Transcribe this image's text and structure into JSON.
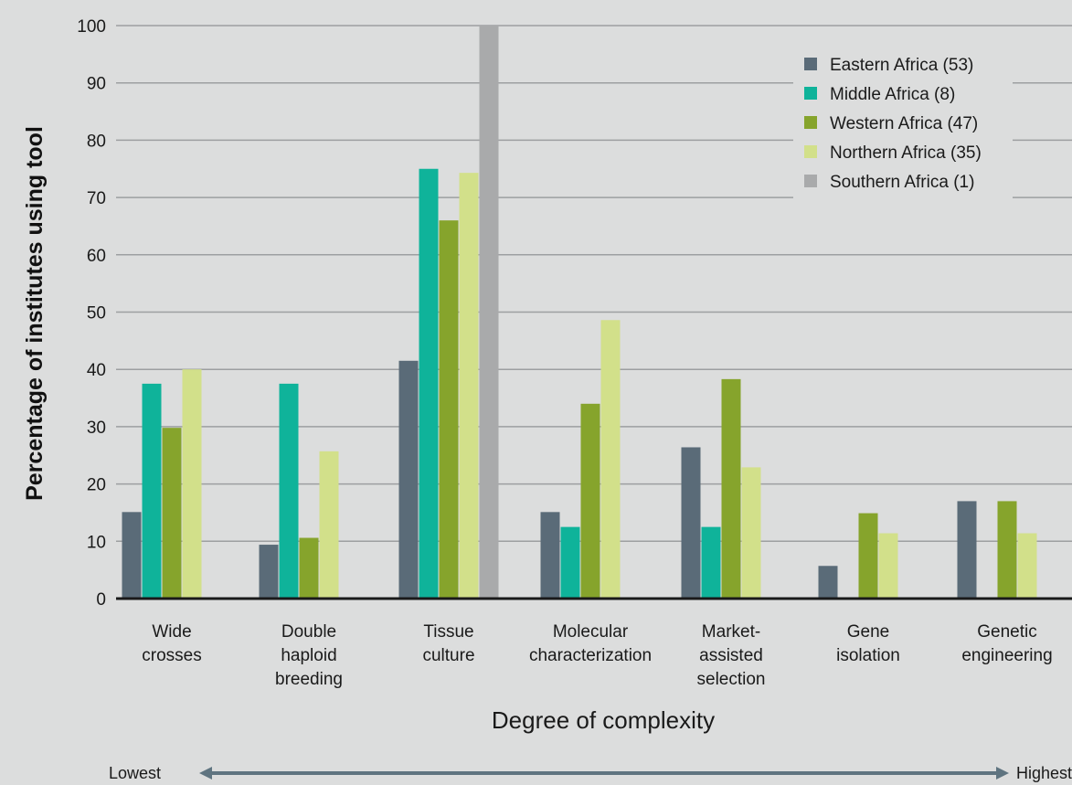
{
  "chart_data": {
    "type": "bar",
    "ylabel": "Percentage of institutes using tool",
    "xlabel": "Degree of complexity",
    "ylim": [
      0,
      100
    ],
    "yticks": [
      0,
      10,
      20,
      30,
      40,
      50,
      60,
      70,
      80,
      90,
      100
    ],
    "grid": true,
    "legend_position": "top-right",
    "complexity_axis": {
      "low_label": "Lowest",
      "high_label": "Highest"
    },
    "categories": [
      [
        "Wide",
        "crosses"
      ],
      [
        "Double",
        "haploid",
        "breeding"
      ],
      [
        "Tissue",
        "culture"
      ],
      [
        "Molecular",
        "characterization"
      ],
      [
        "Market-",
        "assisted",
        "selection"
      ],
      [
        "Gene",
        "isolation"
      ],
      [
        "Genetic",
        "engineering"
      ]
    ],
    "series": [
      {
        "name": "Eastern Africa (53)",
        "color": "#5a6b78",
        "values": [
          15.1,
          9.4,
          41.5,
          15.1,
          26.4,
          5.7,
          17.0
        ]
      },
      {
        "name": "Middle Africa (8)",
        "color": "#0fb39a",
        "values": [
          37.5,
          37.5,
          75.0,
          12.5,
          12.5,
          0,
          0
        ]
      },
      {
        "name": "Western Africa (47)",
        "color": "#86a42c",
        "values": [
          29.8,
          10.6,
          66.0,
          34.0,
          38.3,
          14.9,
          17.0
        ]
      },
      {
        "name": "Northern Africa (35)",
        "color": "#d2e08a",
        "values": [
          40.0,
          25.7,
          74.3,
          48.6,
          22.9,
          11.4,
          11.4
        ]
      },
      {
        "name": "Southern Africa (1)",
        "color": "#a9aaab",
        "values": [
          0,
          0,
          100,
          0,
          0,
          0,
          0
        ]
      }
    ],
    "colors": {
      "background": "#dcdddd",
      "gridline": "#9d9fa1",
      "axis": "#1a1a1a",
      "arrow": "#5f7480"
    }
  }
}
